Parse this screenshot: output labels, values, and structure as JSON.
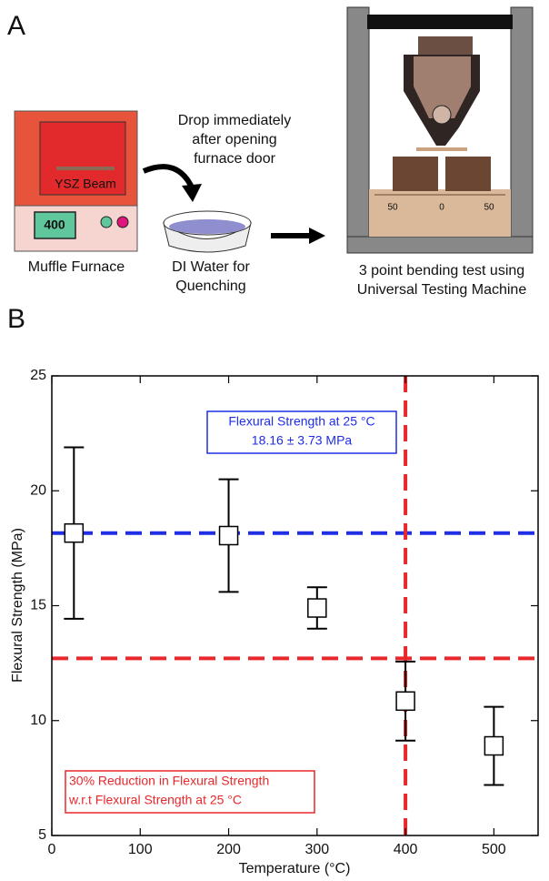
{
  "panel_labels": [
    "A",
    "B"
  ],
  "diagram": {
    "furnace_sample": "YSZ Beam",
    "furnace_display": "400",
    "furnace_label": "Muffle Furnace",
    "drop_note": [
      "Drop immediately",
      "after opening",
      "furnace door"
    ],
    "water_label": [
      "DI Water for",
      "Quenching"
    ],
    "test_label": [
      "3 point bending test using",
      "Universal Testing Machine"
    ],
    "ruler_labels": [
      "50",
      "0",
      "50"
    ]
  },
  "chart_data": {
    "type": "scatter",
    "x_label": "Temperature (°C)",
    "y_label": "Flexural Strength (MPa)",
    "x": [
      25,
      200,
      300,
      400,
      500
    ],
    "values": [
      18.16,
      18.05,
      14.9,
      10.85,
      8.9
    ],
    "errors": [
      3.73,
      2.45,
      0.9,
      1.72,
      1.7
    ],
    "marker_color": "#000000",
    "xlim": [
      0,
      550
    ],
    "xticks": [
      0,
      100,
      200,
      300,
      400,
      500
    ],
    "ylim": [
      5,
      25
    ],
    "yticks": [
      5,
      10,
      15,
      20,
      25
    ],
    "hlines": [
      {
        "value": 18.16,
        "color": "#1f2de6"
      },
      {
        "value": 12.71,
        "color": "#e8282b"
      }
    ],
    "vlines": [
      {
        "value": 400,
        "color": "#e8282b"
      }
    ],
    "annotations": [
      {
        "lines": [
          "Flexural  Strength at 25 °C",
          "18.16 ± 3.73 MPa"
        ],
        "color": "#1f2de6"
      },
      {
        "lines": [
          "30% Reduction in Flexural Strength",
          "w.r.t Flexural Strength at 25 °C"
        ],
        "color": "#e8282b"
      }
    ]
  }
}
